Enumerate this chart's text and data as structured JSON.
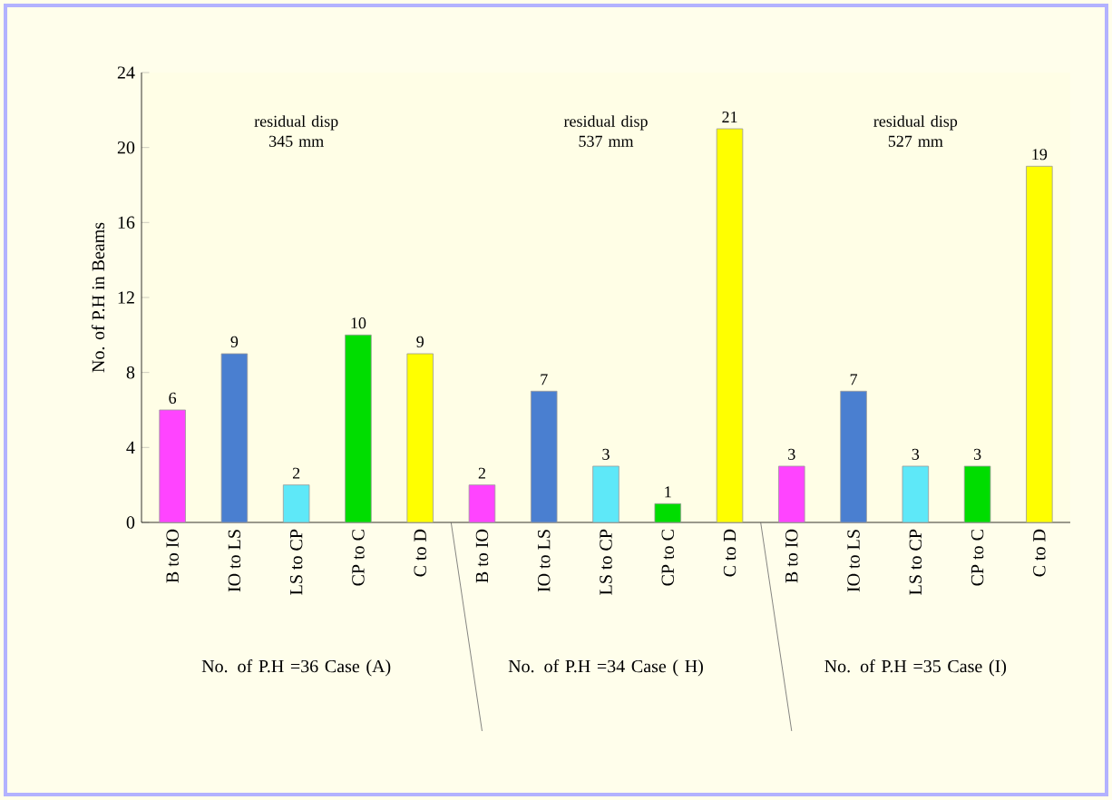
{
  "chart_data": {
    "type": "bar",
    "ylabel": "No. of P.H in Beams",
    "categories": [
      "B to IO",
      "IO to LS",
      "LS to CP",
      "CP to C",
      "C to D",
      "B to IO",
      "IO to LS",
      "LS to CP",
      "CP to C",
      "C to D",
      "B to IO",
      "IO to LS",
      "LS to CP",
      "CP to C",
      "C to D"
    ],
    "values": [
      6,
      9,
      2,
      10,
      9,
      2,
      7,
      3,
      1,
      21,
      3,
      7,
      3,
      3,
      19
    ],
    "colors": [
      "#ff44ff",
      "#4a7fd0",
      "#5ee8f8",
      "#00dd00",
      "#ffff00",
      "#ff44ff",
      "#4a7fd0",
      "#5ee8f8",
      "#00dd00",
      "#ffff00",
      "#ff44ff",
      "#4a7fd0",
      "#5ee8f8",
      "#00dd00",
      "#ffff00"
    ],
    "ylim": [
      0,
      24
    ],
    "yticks": [
      0,
      4,
      8,
      12,
      16,
      20,
      24
    ],
    "data_labels": true,
    "annotations": [
      "residual disp 345 mm",
      "residual disp 537 mm",
      "residual disp 527 mm",
      "No. of P.H =36 Case (A)",
      "No. of P.H =34 Case ( H)",
      "No. of P.H =35 Case (I)"
    ]
  }
}
